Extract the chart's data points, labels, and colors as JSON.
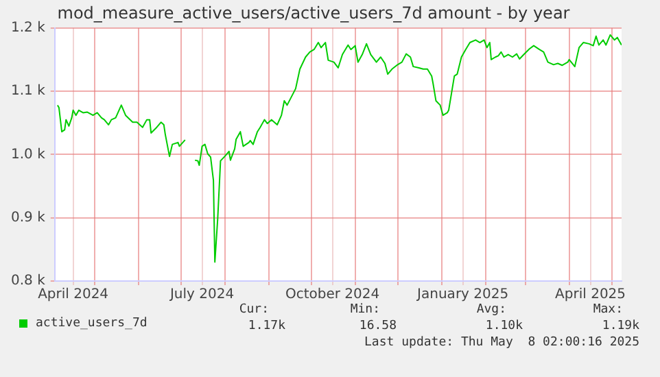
{
  "chart_data": {
    "type": "line",
    "title": "mod_measure_active_users/active_users_7d amount - by year",
    "x": [
      "2024-04-05",
      "2024-04-06",
      "2024-04-08",
      "2024-04-10",
      "2024-04-11",
      "2024-04-13",
      "2024-04-15",
      "2024-04-16",
      "2024-04-18",
      "2024-04-20",
      "2024-04-23",
      "2024-04-26",
      "2024-04-30",
      "2024-05-03",
      "2024-05-06",
      "2024-05-08",
      "2024-05-11",
      "2024-05-13",
      "2024-05-16",
      "2024-05-20",
      "2024-05-23",
      "2024-05-28",
      "2024-05-31",
      "2024-06-04",
      "2024-06-07",
      "2024-06-09",
      "2024-06-10",
      "2024-06-14",
      "2024-06-17",
      "2024-06-19",
      "2024-06-20",
      "2024-06-23",
      "2024-06-25",
      "2024-06-29",
      "2024-06-30",
      "2024-07-04",
      "2024-07-07",
      "2024-07-11",
      "2024-07-13",
      "2024-07-14",
      "2024-07-16",
      "2024-07-18",
      "2024-07-20",
      "2024-07-22",
      "2024-07-24",
      "2024-07-25",
      "2024-07-27",
      "2024-07-29",
      "2024-08-01",
      "2024-08-04",
      "2024-08-05",
      "2024-08-08",
      "2024-08-09",
      "2024-08-12",
      "2024-08-14",
      "2024-08-16",
      "2024-08-18",
      "2024-08-19",
      "2024-08-21",
      "2024-08-24",
      "2024-08-26",
      "2024-08-29",
      "2024-08-31",
      "2024-09-03",
      "2024-09-07",
      "2024-09-10",
      "2024-09-12",
      "2024-09-14",
      "2024-09-17",
      "2024-09-20",
      "2024-09-23",
      "2024-09-27",
      "2024-09-30",
      "2024-10-03",
      "2024-10-06",
      "2024-10-08",
      "2024-10-11",
      "2024-10-13",
      "2024-10-17",
      "2024-10-20",
      "2024-10-23",
      "2024-10-27",
      "2024-10-29",
      "2024-11-01",
      "2024-11-03",
      "2024-11-06",
      "2024-11-09",
      "2024-11-12",
      "2024-11-16",
      "2024-11-19",
      "2024-11-22",
      "2024-11-24",
      "2024-11-27",
      "2024-12-01",
      "2024-12-04",
      "2024-12-07",
      "2024-12-10",
      "2024-12-12",
      "2024-12-16",
      "2024-12-19",
      "2024-12-22",
      "2024-12-25",
      "2024-12-26",
      "2024-12-28",
      "2024-12-31",
      "2025-01-02",
      "2025-01-05",
      "2025-01-06",
      "2025-01-08",
      "2025-01-10",
      "2025-01-12",
      "2025-01-15",
      "2025-01-18",
      "2025-01-21",
      "2025-01-25",
      "2025-01-28",
      "2025-01-31",
      "2025-02-02",
      "2025-02-04",
      "2025-02-05",
      "2025-02-08",
      "2025-02-10",
      "2025-02-12",
      "2025-02-14",
      "2025-02-17",
      "2025-02-20",
      "2025-02-23",
      "2025-02-25",
      "2025-02-28",
      "2025-03-04",
      "2025-03-07",
      "2025-03-11",
      "2025-03-14",
      "2025-03-17",
      "2025-03-21",
      "2025-03-24",
      "2025-03-27",
      "2025-03-31",
      "2025-04-01",
      "2025-04-05",
      "2025-04-08",
      "2025-04-11",
      "2025-04-15",
      "2025-04-18",
      "2025-04-20",
      "2025-04-22",
      "2025-04-25",
      "2025-04-27",
      "2025-04-30",
      "2025-05-03",
      "2025-05-05",
      "2025-05-08"
    ],
    "series": [
      {
        "name": "active_users_7d",
        "color": "#00cc00",
        "values": [
          1078,
          1074,
          1036,
          1039,
          1055,
          1045,
          1058,
          1070,
          1062,
          1070,
          1066,
          1067,
          1062,
          1066,
          1058,
          1055,
          1047,
          1055,
          1058,
          1078,
          1062,
          1051,
          1051,
          1043,
          1055,
          1055,
          1034,
          1043,
          1051,
          1047,
          1032,
          997,
          1016,
          1019,
          1013,
          1023,
          null,
          991,
          990,
          983,
          1013,
          1016,
          1001,
          996,
          959,
          830,
          898,
          990,
          997,
          1005,
          991,
          1009,
          1024,
          1036,
          1013,
          1016,
          1019,
          1022,
          1016,
          1036,
          1043,
          1055,
          1049,
          1055,
          1047,
          1062,
          1085,
          1078,
          1091,
          1104,
          1135,
          1154,
          1162,
          1166,
          1177,
          1169,
          1177,
          1149,
          1146,
          1137,
          1158,
          1173,
          1166,
          1172,
          1146,
          1158,
          1175,
          1158,
          1146,
          1154,
          1144,
          1127,
          1135,
          1142,
          1146,
          1159,
          1154,
          1139,
          1137,
          1135,
          1135,
          1124,
          1112,
          1085,
          1078,
          1062,
          1066,
          1070,
          1097,
          1124,
          1127,
          1154,
          1166,
          1177,
          1181,
          1177,
          1181,
          1169,
          1177,
          1150,
          1154,
          1156,
          1162,
          1154,
          1158,
          1154,
          1159,
          1151,
          1158,
          1167,
          1172,
          1166,
          1162,
          1146,
          1142,
          1144,
          1141,
          1146,
          1150,
          1139,
          1169,
          1177,
          1175,
          1172,
          1187,
          1173,
          1181,
          1173,
          1189,
          1181,
          1185,
          1173
        ]
      }
    ],
    "xlim": [
      "2024-04-03",
      "2025-05-08"
    ],
    "xticks": [
      {
        "value": "2024-04-16",
        "label": "April 2024"
      },
      {
        "value": "2024-05-01",
        "label": null
      },
      {
        "value": "2024-06-01",
        "label": null
      },
      {
        "value": "2024-07-01",
        "label": null
      },
      {
        "value": "2024-07-16",
        "label": "July 2024"
      },
      {
        "value": "2024-08-01",
        "label": null
      },
      {
        "value": "2024-09-01",
        "label": null
      },
      {
        "value": "2024-10-01",
        "label": null
      },
      {
        "value": "2024-10-16",
        "label": "October 2024"
      },
      {
        "value": "2024-11-01",
        "label": null
      },
      {
        "value": "2024-12-01",
        "label": null
      },
      {
        "value": "2025-01-01",
        "label": null
      },
      {
        "value": "2025-01-16",
        "label": "January 2025"
      },
      {
        "value": "2025-02-01",
        "label": null
      },
      {
        "value": "2025-03-01",
        "label": null
      },
      {
        "value": "2025-04-01",
        "label": null
      },
      {
        "value": "2025-04-16",
        "label": "April 2025"
      },
      {
        "value": "2025-05-01",
        "label": null
      }
    ],
    "ylim": [
      800,
      1200
    ],
    "yticks": [
      {
        "value": 800,
        "label": "0.8 k"
      },
      {
        "value": 900,
        "label": "0.9 k"
      },
      {
        "value": 1000,
        "label": "1.0 k"
      },
      {
        "value": 1100,
        "label": "1.1 k"
      },
      {
        "value": 1200,
        "label": "1.2 k"
      }
    ],
    "grid": true,
    "legend": "bottom",
    "annotations": [
      "Cur:",
      "1.17k",
      "Min:",
      "16.58",
      "Avg:",
      "1.10k",
      "Max:",
      "1.19k",
      "Last update: Thu May  8 02:00:16 2025"
    ]
  }
}
